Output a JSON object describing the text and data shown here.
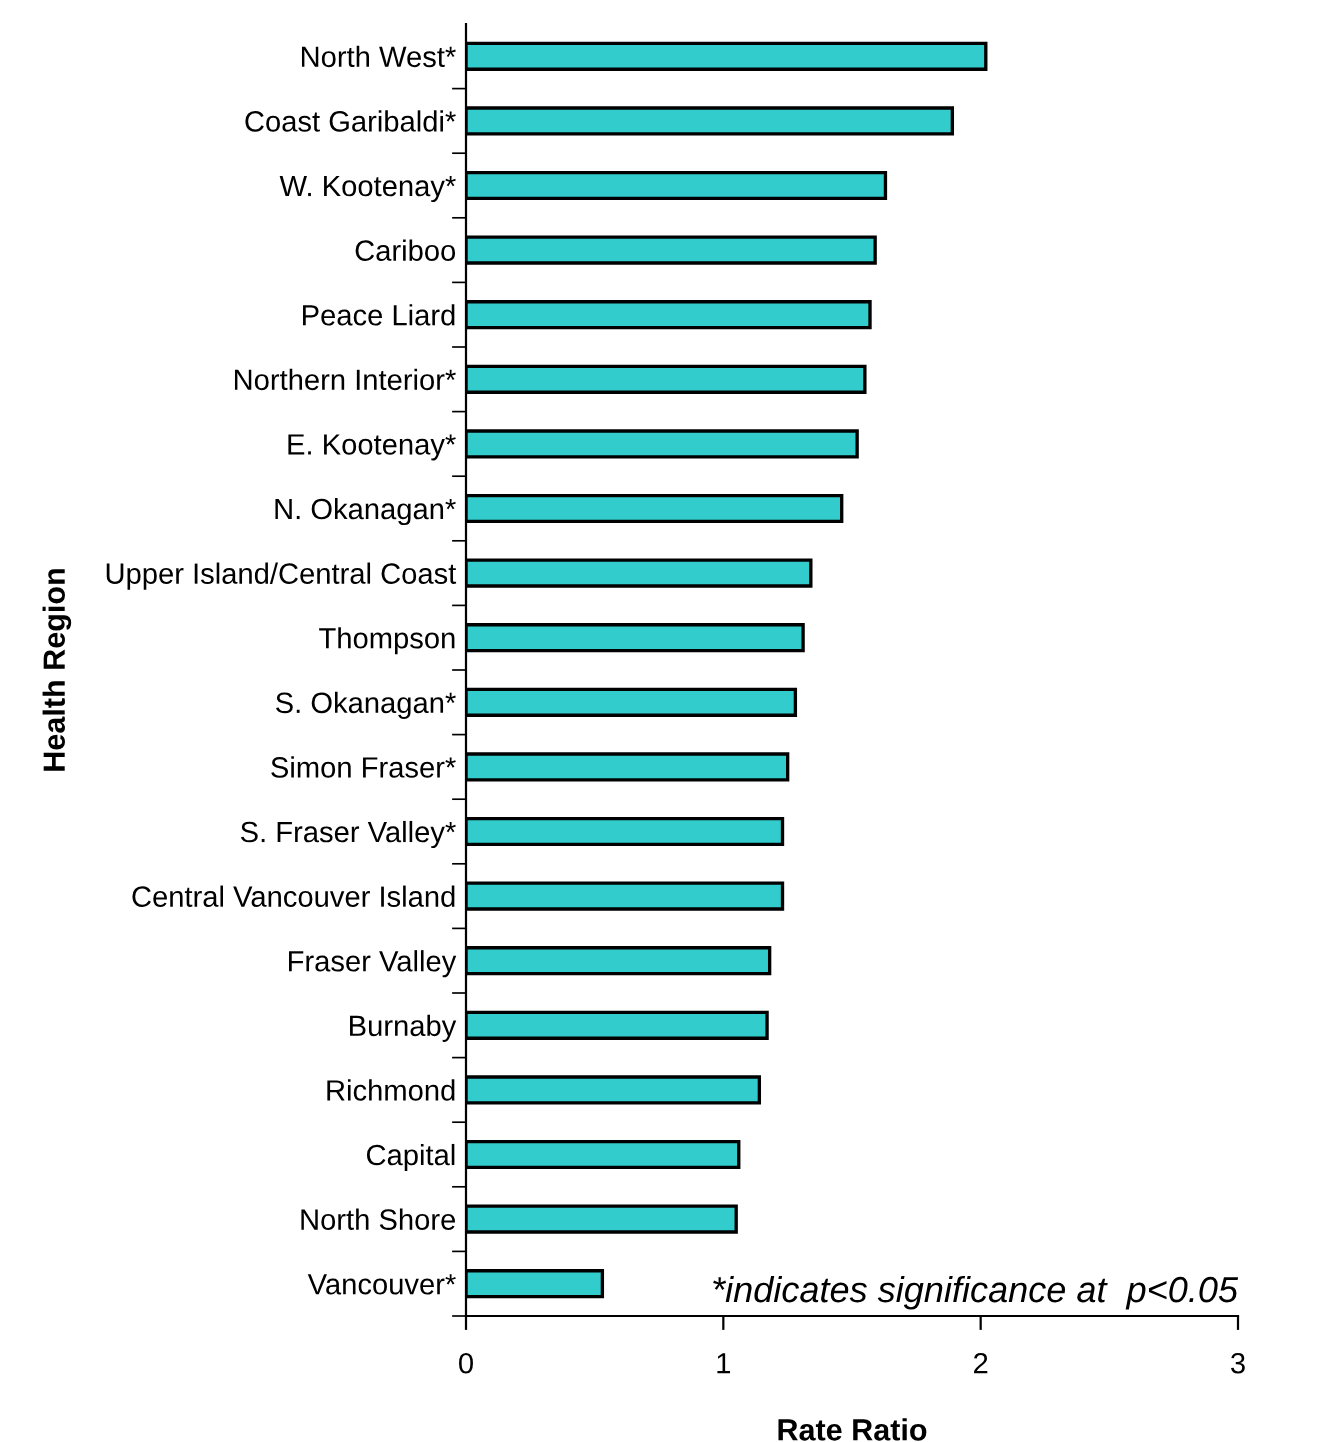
{
  "chart_data": {
    "type": "bar",
    "orientation": "horizontal",
    "xlabel": "Rate Ratio",
    "ylabel": "Health Region",
    "categories": [
      "North West*",
      "Coast Garibaldi*",
      "W. Kootenay*",
      "Cariboo",
      "Peace Liard",
      "Northern Interior*",
      "E. Kootenay*",
      "N. Okanagan*",
      "Upper Island/Central Coast",
      "Thompson",
      "S. Okanagan*",
      "Simon Fraser*",
      "S. Fraser Valley*",
      "Central Vancouver Island",
      "Fraser Valley",
      "Burnaby",
      "Richmond",
      "Capital",
      "North Shore",
      "Vancouver*"
    ],
    "values": [
      2.02,
      1.89,
      1.63,
      1.59,
      1.57,
      1.55,
      1.52,
      1.46,
      1.34,
      1.31,
      1.28,
      1.25,
      1.23,
      1.23,
      1.18,
      1.17,
      1.14,
      1.06,
      1.05,
      0.53
    ],
    "color": "#33cccc",
    "xlim": [
      0,
      3
    ],
    "xticks": [
      0,
      1,
      2,
      3
    ],
    "annotations": [
      "*indicates significance at  p<0.05"
    ],
    "grid": false,
    "legend": false
  }
}
